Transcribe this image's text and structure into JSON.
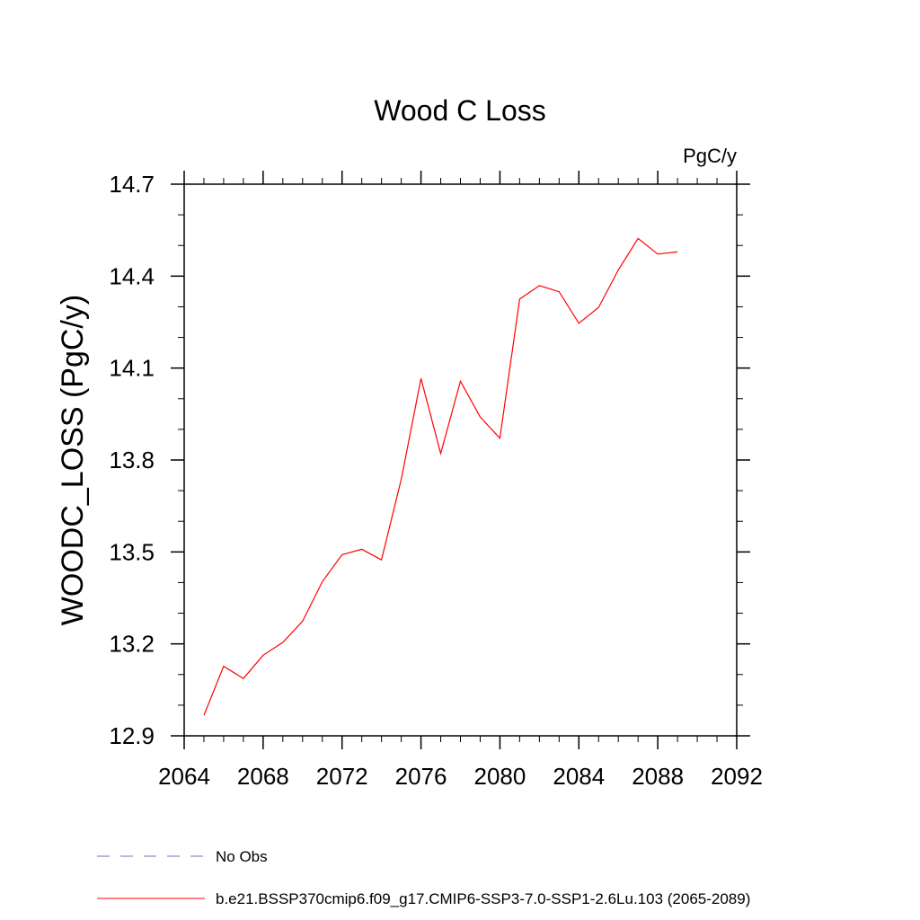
{
  "chart_data": {
    "type": "line",
    "title": "Wood C Loss",
    "units_label": "PgC/y",
    "ylabel": "WOODC_LOSS  (PgC/y)",
    "xlabel": "",
    "xlim": [
      2064,
      2092
    ],
    "ylim": [
      12.9,
      14.7
    ],
    "x_ticks": [
      "2064",
      "2068",
      "2072",
      "2076",
      "2080",
      "2084",
      "2088",
      "2092"
    ],
    "y_ticks": [
      "12.9",
      "13.2",
      "13.5",
      "13.8",
      "14.1",
      "14.4",
      "14.7"
    ],
    "grid": false,
    "series": [
      {
        "name": "b.e21.BSSP370cmip6.f09_g17.CMIP6-SSP3-7.0-SSP1-2.6Lu.103 (2065-2089)",
        "color": "#ff0000",
        "x": [
          2065,
          2066,
          2067,
          2068,
          2069,
          2070,
          2071,
          2072,
          2073,
          2074,
          2075,
          2076,
          2077,
          2078,
          2079,
          2080,
          2081,
          2082,
          2083,
          2084,
          2085,
          2086,
          2087,
          2088,
          2089
        ],
        "y": [
          12.967,
          13.127,
          13.087,
          13.163,
          13.205,
          13.274,
          13.403,
          13.491,
          13.509,
          13.474,
          13.737,
          14.066,
          13.821,
          14.057,
          13.94,
          13.871,
          14.325,
          14.369,
          14.349,
          14.246,
          14.298,
          14.42,
          14.523,
          14.472,
          14.479
        ]
      }
    ],
    "legend": [
      {
        "label": "No Obs",
        "style": "dashed",
        "color": "#7b68b8"
      },
      {
        "label": "b.e21.BSSP370cmip6.f09_g17.CMIP6-SSP3-7.0-SSP1-2.6Lu.103 (2065-2089)",
        "style": "solid",
        "color": "#ff0000"
      }
    ],
    "legend_position": "bottom-left"
  }
}
